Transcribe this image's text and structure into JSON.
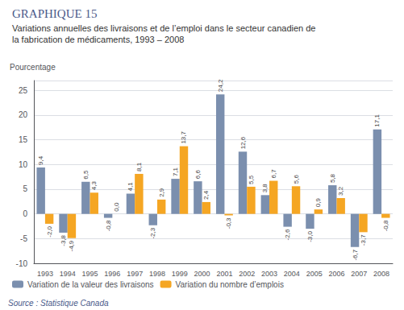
{
  "chart_data": {
    "type": "bar",
    "title": "GRAPHIQUE 15",
    "subtitle": "Variations annuelles des livraisons et de l’emploi dans le secteur canadien de\nla fabrication de médicaments, 1993 – 2008",
    "ylabel": "Pourcentage",
    "annotations": [
      "Source : Statistique Canada"
    ],
    "categories": [
      "1993",
      "1994",
      "1995",
      "1996",
      "1997",
      "1998",
      "1999",
      "2000",
      "2001",
      "2002",
      "2003",
      "2004",
      "2005",
      "2006",
      "2007",
      "2008"
    ],
    "series": [
      {
        "name": "Variation de la valeur des livraisons",
        "color": "#7b8fae",
        "values": [
          9.4,
          -3.8,
          6.5,
          -0.8,
          4.1,
          -2.3,
          7.1,
          6.6,
          24.2,
          12.6,
          3.8,
          -2.6,
          -3.0,
          5.8,
          -6.7,
          17.1
        ],
        "value_labels": [
          "9,4",
          "-3,8",
          "6,5",
          "-0,8",
          "4,1",
          "-2,3",
          "7,1",
          "6,6",
          "24,2",
          "12,6",
          "3,8",
          "-2,6",
          "-3,0",
          "5,8",
          "-6,7",
          "17,1"
        ]
      },
      {
        "name": "Variation du nombre d’emplois",
        "color": "#f5a623",
        "values": [
          -2.0,
          -4.9,
          4.3,
          0.0,
          8.1,
          2.9,
          13.7,
          2.4,
          -0.3,
          5.5,
          6.7,
          5.6,
          0.9,
          3.2,
          -3.7,
          -0.8
        ],
        "value_labels": [
          "-2,0",
          "-4,9",
          "4,3",
          "0,0",
          "8,1",
          "2,9",
          "13,7",
          "2,4",
          "-0,3",
          "5,5",
          "6,7",
          "5,6",
          "0,9",
          "3,2",
          "-3,7",
          "-0,8"
        ]
      }
    ],
    "ylim": [
      -10,
      27
    ],
    "yticks": [
      -10,
      -5,
      0,
      5,
      10,
      15,
      20,
      25
    ],
    "grid": true,
    "legend": "bottom",
    "data_labels": true
  }
}
